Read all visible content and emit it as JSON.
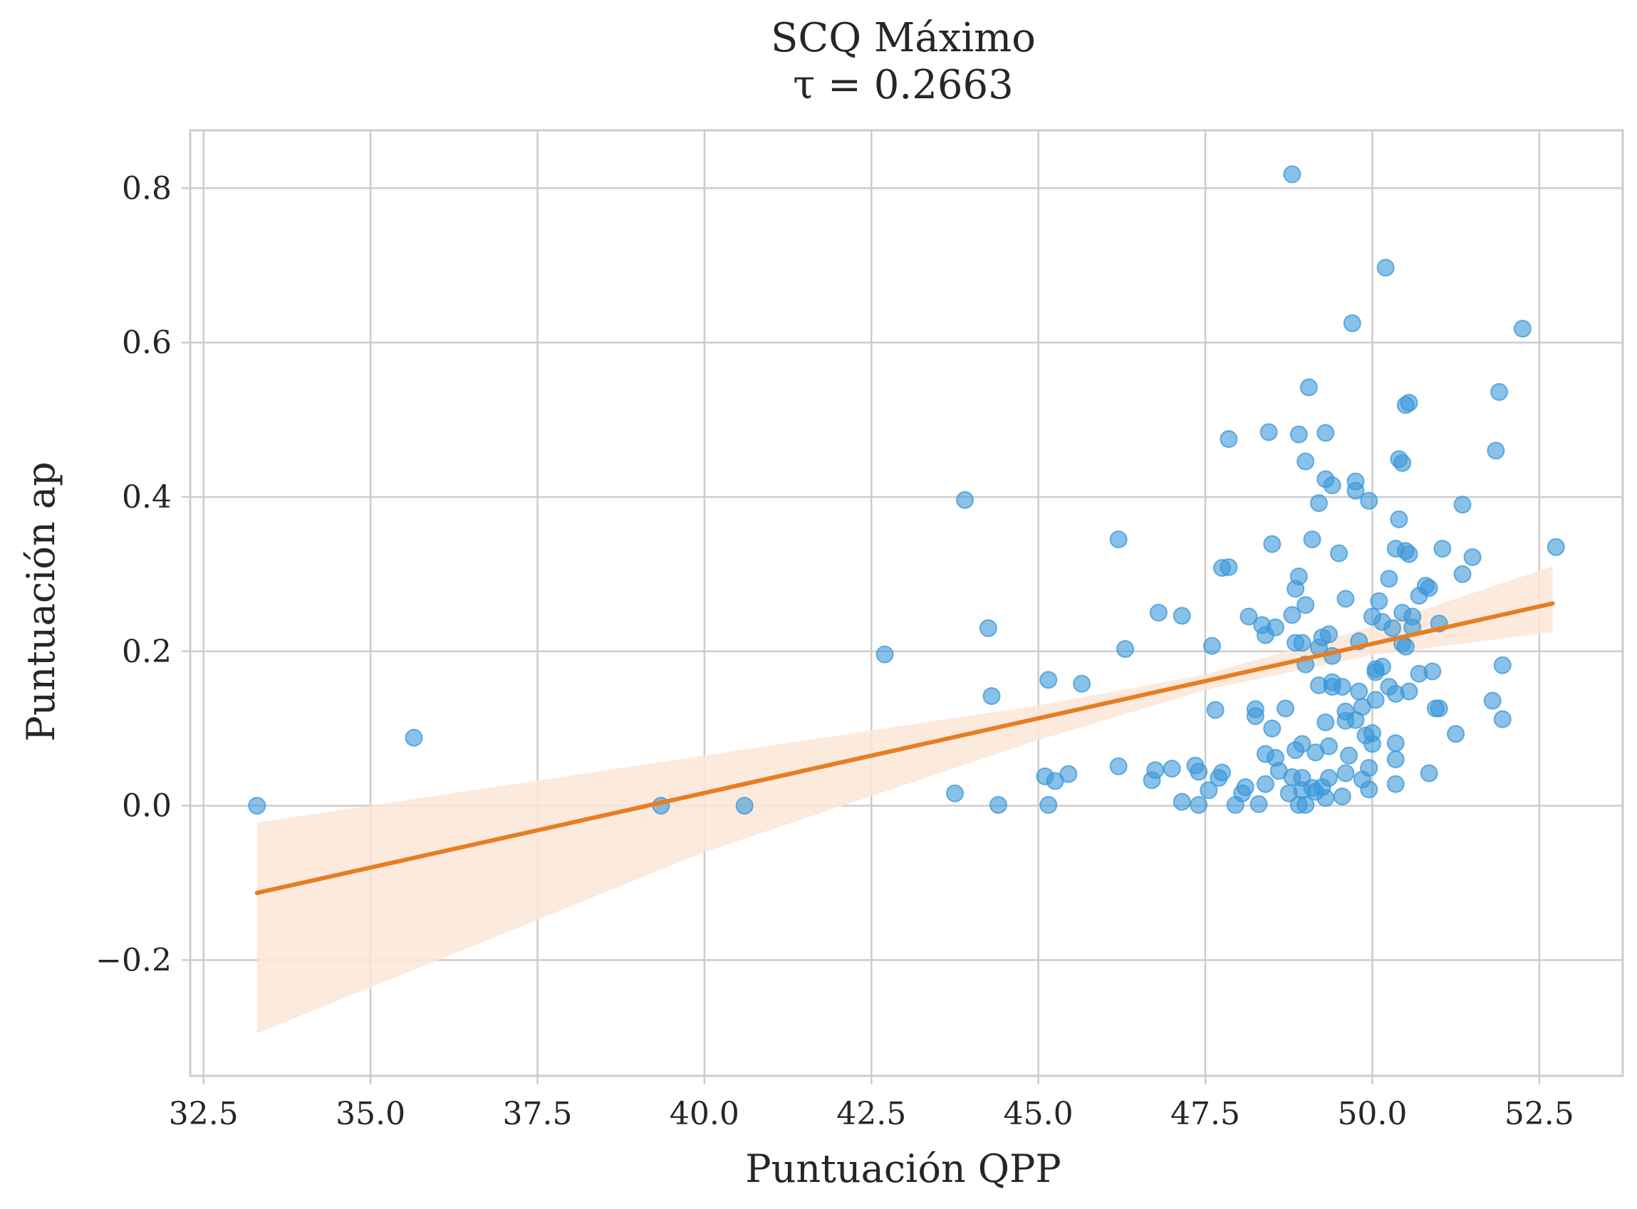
{
  "chart_data": {
    "type": "scatter",
    "title": "SCQ Máximo",
    "subtitle": "τ = 0.2663",
    "xlabel": "Puntuación QPP",
    "ylabel": "Puntuación ap",
    "xlim": [
      32.3,
      53.75
    ],
    "ylim": [
      -0.35,
      0.875
    ],
    "xticks": [
      32.5,
      35.0,
      37.5,
      40.0,
      42.5,
      45.0,
      47.5,
      50.0,
      52.5
    ],
    "xtick_labels": [
      "32.5",
      "35.0",
      "37.5",
      "40.0",
      "42.5",
      "45.0",
      "47.5",
      "50.0",
      "52.5"
    ],
    "yticks": [
      -0.2,
      0.0,
      0.2,
      0.4,
      0.6,
      0.8
    ],
    "ytick_labels": [
      "−0.2",
      "0.0",
      "0.2",
      "0.4",
      "0.6",
      "0.8"
    ],
    "grid": true,
    "colors": {
      "points": "#3b97d9",
      "line": "#e67e22",
      "band": "#fbe6d6"
    },
    "regression": {
      "x": [
        33.3,
        52.7
      ],
      "y": [
        -0.113,
        0.262
      ],
      "ci_x": [
        33.3,
        40.0,
        45.0,
        47.5,
        50.0,
        52.7
      ],
      "ci_upper": [
        -0.022,
        0.065,
        0.13,
        0.17,
        0.232,
        0.31
      ],
      "ci_lower": [
        -0.295,
        -0.06,
        0.085,
        0.15,
        0.195,
        0.225
      ]
    },
    "points": [
      [
        33.3,
        0.0
      ],
      [
        35.65,
        0.088
      ],
      [
        39.35,
        0.0
      ],
      [
        40.6,
        0.0
      ],
      [
        42.7,
        0.196
      ],
      [
        43.75,
        0.016
      ],
      [
        43.9,
        0.396
      ],
      [
        44.25,
        0.23
      ],
      [
        44.3,
        0.142
      ],
      [
        44.4,
        0.001
      ],
      [
        45.1,
        0.038
      ],
      [
        45.15,
        0.001
      ],
      [
        45.15,
        0.163
      ],
      [
        45.25,
        0.032
      ],
      [
        45.45,
        0.041
      ],
      [
        45.65,
        0.158
      ],
      [
        46.2,
        0.345
      ],
      [
        46.2,
        0.051
      ],
      [
        46.3,
        0.203
      ],
      [
        46.7,
        0.033
      ],
      [
        46.75,
        0.046
      ],
      [
        46.8,
        0.25
      ],
      [
        47.0,
        0.048
      ],
      [
        47.15,
        0.246
      ],
      [
        47.15,
        0.005
      ],
      [
        47.35,
        0.052
      ],
      [
        47.4,
        0.044
      ],
      [
        47.4,
        0.001
      ],
      [
        47.55,
        0.02
      ],
      [
        47.6,
        0.207
      ],
      [
        47.65,
        0.124
      ],
      [
        47.7,
        0.036
      ],
      [
        47.75,
        0.308
      ],
      [
        47.75,
        0.043
      ],
      [
        47.85,
        0.309
      ],
      [
        47.85,
        0.475
      ],
      [
        47.95,
        0.001
      ],
      [
        48.05,
        0.016
      ],
      [
        48.1,
        0.024
      ],
      [
        48.15,
        0.245
      ],
      [
        48.25,
        0.125
      ],
      [
        48.25,
        0.116
      ],
      [
        48.3,
        0.002
      ],
      [
        48.35,
        0.234
      ],
      [
        48.4,
        0.067
      ],
      [
        48.4,
        0.028
      ],
      [
        48.4,
        0.221
      ],
      [
        48.45,
        0.484
      ],
      [
        48.5,
        0.339
      ],
      [
        48.5,
        0.1
      ],
      [
        48.55,
        0.062
      ],
      [
        48.55,
        0.231
      ],
      [
        48.6,
        0.045
      ],
      [
        48.7,
        0.126
      ],
      [
        48.75,
        0.016
      ],
      [
        48.8,
        0.247
      ],
      [
        48.8,
        0.818
      ],
      [
        48.8,
        0.037
      ],
      [
        48.85,
        0.072
      ],
      [
        48.85,
        0.211
      ],
      [
        48.85,
        0.281
      ],
      [
        48.9,
        0.297
      ],
      [
        48.9,
        0.481
      ],
      [
        48.9,
        0.001
      ],
      [
        48.95,
        0.08
      ],
      [
        48.95,
        0.036
      ],
      [
        48.95,
        0.02
      ],
      [
        48.95,
        0.211
      ],
      [
        49.0,
        0.446
      ],
      [
        49.0,
        0.26
      ],
      [
        49.0,
        0.001
      ],
      [
        49.0,
        0.183
      ],
      [
        49.05,
        0.542
      ],
      [
        49.1,
        0.023
      ],
      [
        49.1,
        0.345
      ],
      [
        49.15,
        0.018
      ],
      [
        49.15,
        0.069
      ],
      [
        49.2,
        0.205
      ],
      [
        49.2,
        0.392
      ],
      [
        49.2,
        0.156
      ],
      [
        49.25,
        0.218
      ],
      [
        49.25,
        0.024
      ],
      [
        49.3,
        0.01
      ],
      [
        49.3,
        0.483
      ],
      [
        49.3,
        0.108
      ],
      [
        49.3,
        0.423
      ],
      [
        49.35,
        0.222
      ],
      [
        49.35,
        0.077
      ],
      [
        49.35,
        0.036
      ],
      [
        49.4,
        0.415
      ],
      [
        49.4,
        0.16
      ],
      [
        49.4,
        0.154
      ],
      [
        49.4,
        0.194
      ],
      [
        49.5,
        0.327
      ],
      [
        49.55,
        0.154
      ],
      [
        49.55,
        0.012
      ],
      [
        49.6,
        0.11
      ],
      [
        49.6,
        0.268
      ],
      [
        49.6,
        0.042
      ],
      [
        49.6,
        0.122
      ],
      [
        49.65,
        0.065
      ],
      [
        49.7,
        0.625
      ],
      [
        49.75,
        0.42
      ],
      [
        49.75,
        0.111
      ],
      [
        49.75,
        0.408
      ],
      [
        49.8,
        0.213
      ],
      [
        49.8,
        0.148
      ],
      [
        49.85,
        0.128
      ],
      [
        49.85,
        0.034
      ],
      [
        49.9,
        0.091
      ],
      [
        49.95,
        0.395
      ],
      [
        49.95,
        0.049
      ],
      [
        49.95,
        0.021
      ],
      [
        50.0,
        0.245
      ],
      [
        50.0,
        0.08
      ],
      [
        50.0,
        0.094
      ],
      [
        50.05,
        0.137
      ],
      [
        50.05,
        0.177
      ],
      [
        50.05,
        0.173
      ],
      [
        50.1,
        0.265
      ],
      [
        50.15,
        0.18
      ],
      [
        50.15,
        0.238
      ],
      [
        50.2,
        0.697
      ],
      [
        50.25,
        0.154
      ],
      [
        50.25,
        0.294
      ],
      [
        50.3,
        0.23
      ],
      [
        50.35,
        0.333
      ],
      [
        50.35,
        0.081
      ],
      [
        50.35,
        0.145
      ],
      [
        50.35,
        0.06
      ],
      [
        50.35,
        0.028
      ],
      [
        50.4,
        0.449
      ],
      [
        50.4,
        0.371
      ],
      [
        50.45,
        0.444
      ],
      [
        50.45,
        0.25
      ],
      [
        50.45,
        0.21
      ],
      [
        50.5,
        0.519
      ],
      [
        50.5,
        0.33
      ],
      [
        50.5,
        0.206
      ],
      [
        50.55,
        0.326
      ],
      [
        50.55,
        0.522
      ],
      [
        50.55,
        0.148
      ],
      [
        50.6,
        0.245
      ],
      [
        50.6,
        0.231
      ],
      [
        50.7,
        0.171
      ],
      [
        50.7,
        0.272
      ],
      [
        50.8,
        0.285
      ],
      [
        50.85,
        0.042
      ],
      [
        50.85,
        0.282
      ],
      [
        50.9,
        0.174
      ],
      [
        50.95,
        0.126
      ],
      [
        51.0,
        0.236
      ],
      [
        51.0,
        0.126
      ],
      [
        51.05,
        0.333
      ],
      [
        51.25,
        0.093
      ],
      [
        51.35,
        0.3
      ],
      [
        51.35,
        0.39
      ],
      [
        51.5,
        0.322
      ],
      [
        51.8,
        0.136
      ],
      [
        51.85,
        0.46
      ],
      [
        51.9,
        0.536
      ],
      [
        51.95,
        0.112
      ],
      [
        51.95,
        0.182
      ],
      [
        52.25,
        0.618
      ],
      [
        52.75,
        0.335
      ]
    ]
  }
}
